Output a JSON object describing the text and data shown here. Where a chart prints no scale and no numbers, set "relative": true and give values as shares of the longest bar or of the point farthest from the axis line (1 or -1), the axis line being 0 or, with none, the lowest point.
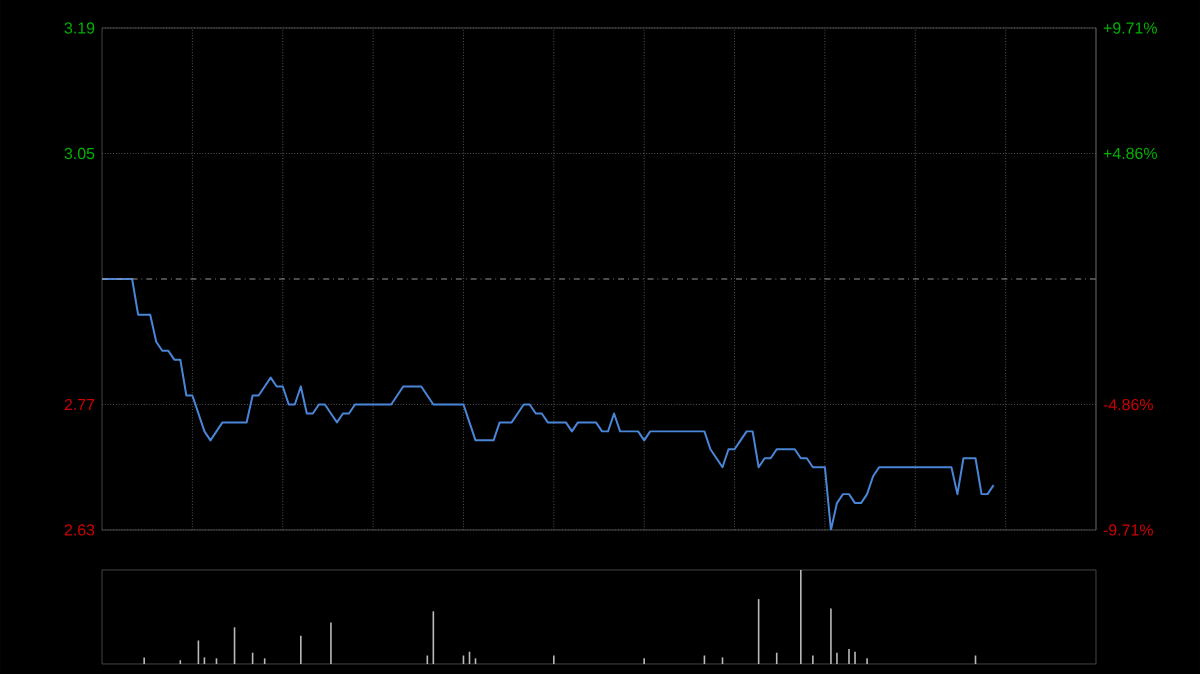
{
  "chart_data": [
    {
      "type": "line",
      "categories": [
        null,
        null,
        null,
        null,
        null,
        null,
        null,
        null,
        null,
        null,
        null,
        null,
        null,
        null,
        null,
        null,
        null,
        null,
        null,
        null,
        null,
        null,
        null,
        null,
        null,
        null,
        null,
        null,
        null,
        null,
        null,
        null,
        null,
        null,
        null,
        null,
        null,
        null,
        null,
        null,
        null,
        null,
        null,
        null,
        null,
        null,
        null,
        null,
        null,
        null,
        null,
        null,
        null,
        null,
        null,
        null,
        null,
        null,
        null,
        null,
        null,
        null,
        null,
        null,
        null,
        null,
        null,
        null,
        null,
        null,
        null,
        null,
        null,
        null,
        null,
        null,
        null,
        null,
        null,
        null,
        null,
        null,
        null,
        null,
        null,
        null,
        null,
        null,
        null,
        null,
        null,
        null,
        null,
        null,
        null,
        null,
        null,
        null,
        null,
        null,
        null,
        null,
        null,
        null,
        null,
        null,
        null,
        null,
        null,
        null,
        null,
        null,
        null,
        null,
        null,
        null,
        null,
        null,
        null,
        null,
        null,
        null,
        null,
        null,
        null,
        null,
        null,
        null,
        null,
        null,
        null,
        null,
        null,
        null,
        null,
        null,
        null,
        null,
        null,
        null,
        null,
        null,
        null,
        null,
        null,
        null,
        null,
        null,
        null,
        null,
        null,
        null,
        null,
        null,
        null,
        null,
        null,
        null,
        null,
        null,
        null,
        null,
        null,
        null,
        null,
        null
      ],
      "series": [
        {
          "color": "#4a86d8",
          "values": [
            2.91,
            2.91,
            2.91,
            2.91,
            2.91,
            2.91,
            2.87,
            2.87,
            2.87,
            2.84,
            2.83,
            2.83,
            2.82,
            2.82,
            2.78,
            2.78,
            2.76,
            2.74,
            2.73,
            2.74,
            2.75,
            2.75,
            2.75,
            2.75,
            2.75,
            2.78,
            2.78,
            2.79,
            2.8,
            2.79,
            2.79,
            2.77,
            2.77,
            2.79,
            2.76,
            2.76,
            2.77,
            2.77,
            2.76,
            2.75,
            2.76,
            2.76,
            2.77,
            2.77,
            2.77,
            2.77,
            2.77,
            2.77,
            2.77,
            2.78,
            2.79,
            2.79,
            2.79,
            2.79,
            2.78,
            2.77,
            2.77,
            2.77,
            2.77,
            2.77,
            2.77,
            2.75,
            2.73,
            2.73,
            2.73,
            2.73,
            2.75,
            2.75,
            2.75,
            2.76,
            2.77,
            2.77,
            2.76,
            2.76,
            2.75,
            2.75,
            2.75,
            2.75,
            2.74,
            2.75,
            2.75,
            2.75,
            2.75,
            2.74,
            2.74,
            2.76,
            2.74,
            2.74,
            2.74,
            2.74,
            2.73,
            2.74,
            2.74,
            2.74,
            2.74,
            2.74,
            2.74,
            2.74,
            2.74,
            2.74,
            2.74,
            2.72,
            2.71,
            2.7,
            2.72,
            2.72,
            2.73,
            2.74,
            2.74,
            2.7,
            2.71,
            2.71,
            2.72,
            2.72,
            2.72,
            2.72,
            2.71,
            2.71,
            2.7,
            2.7,
            2.7,
            2.63,
            2.66,
            2.67,
            2.67,
            2.66,
            2.66,
            2.67,
            2.69,
            2.7,
            2.7,
            2.7,
            2.7,
            2.7,
            2.7,
            2.7,
            2.7,
            2.7,
            2.7,
            2.7,
            2.7,
            2.7,
            2.67,
            2.71,
            2.71,
            2.71,
            2.67,
            2.67,
            2.68,
            null,
            null,
            null,
            null,
            null,
            null,
            null,
            null,
            null,
            null,
            null,
            null,
            null,
            null,
            null,
            null,
            null
          ]
        }
      ],
      "ylim": [
        2.63,
        3.19
      ],
      "yticks": [
        {
          "value": 2.63,
          "label": "2.63"
        },
        {
          "value": 2.77,
          "label": "2.77"
        },
        {
          "value": 3.05,
          "label": "3.05"
        },
        {
          "value": 3.19,
          "label": "3.19"
        }
      ],
      "y2lim": [
        -9.71,
        9.71
      ],
      "y2ticks": [
        {
          "value": -9.71,
          "label": "-9.71%"
        },
        {
          "value": -4.86,
          "label": "-4.86%"
        },
        {
          "value": 4.86,
          "label": "+4.86%"
        },
        {
          "value": 9.71,
          "label": "+9.71%"
        }
      ],
      "ref_lines": [
        {
          "axis": "y",
          "value": 2.91,
          "line_style": "dashed"
        }
      ],
      "grid": true,
      "tick_labels": "y"
    },
    {
      "type": "bar",
      "relative": true,
      "color": "#bbbbbb",
      "tick_labels": false,
      "categories": [
        null,
        null,
        null,
        null,
        null,
        null,
        null,
        null,
        null,
        null,
        null,
        null,
        null,
        null,
        null,
        null,
        null,
        null,
        null,
        null,
        null,
        null,
        null,
        null,
        null,
        null,
        null,
        null,
        null,
        null,
        null,
        null,
        null,
        null,
        null,
        null,
        null,
        null,
        null,
        null,
        null,
        null,
        null,
        null,
        null,
        null,
        null,
        null,
        null,
        null,
        null,
        null,
        null,
        null,
        null,
        null,
        null,
        null,
        null,
        null,
        null,
        null,
        null,
        null,
        null,
        null,
        null,
        null,
        null,
        null,
        null,
        null,
        null,
        null,
        null,
        null,
        null,
        null,
        null,
        null,
        null,
        null,
        null,
        null,
        null,
        null,
        null,
        null,
        null,
        null,
        null,
        null,
        null,
        null,
        null,
        null,
        null,
        null,
        null,
        null,
        null,
        null,
        null,
        null,
        null,
        null,
        null,
        null,
        null,
        null,
        null,
        null,
        null,
        null,
        null,
        null,
        null,
        null,
        null,
        null,
        null,
        null,
        null,
        null,
        null,
        null,
        null,
        null,
        null,
        null,
        null,
        null,
        null,
        null,
        null,
        null,
        null,
        null,
        null,
        null,
        null,
        null,
        null,
        null,
        null,
        null,
        null,
        null,
        null,
        null,
        null,
        null,
        null,
        null,
        null,
        null,
        null,
        null,
        null,
        null,
        null,
        null,
        null,
        null,
        null,
        null
      ],
      "values": [
        0,
        0,
        0,
        0,
        0,
        0,
        0,
        0.07,
        0,
        0,
        0,
        0,
        0,
        0.04,
        0,
        0,
        0.25,
        0.07,
        0,
        0.06,
        0,
        0,
        0.39,
        0,
        0,
        0.12,
        0,
        0.06,
        0,
        0,
        0,
        0,
        0,
        0.3,
        0,
        0,
        0,
        0,
        0.44,
        0,
        0,
        0,
        0,
        0,
        0,
        0,
        0,
        0,
        0,
        0,
        0,
        0,
        0,
        0,
        0.09,
        0.56,
        0,
        0,
        0,
        0,
        0.09,
        0.13,
        0.06,
        0,
        0,
        0,
        0,
        0,
        0,
        0,
        0,
        0,
        0,
        0,
        0,
        0.09,
        0,
        0,
        0,
        0,
        0,
        0,
        0,
        0,
        0,
        0,
        0,
        0,
        0,
        0,
        0.06,
        0,
        0,
        0,
        0,
        0,
        0,
        0,
        0,
        0,
        0.09,
        0,
        0,
        0.07,
        0,
        0,
        0,
        0,
        0,
        0.69,
        0,
        0,
        0.12,
        0,
        0,
        0,
        1,
        0,
        0.09,
        0,
        0,
        0.59,
        0.12,
        0,
        0.16,
        0.13,
        0,
        0.06,
        0,
        0,
        0,
        0,
        0,
        0,
        0,
        0,
        0,
        0,
        0,
        0,
        0,
        0,
        0,
        0,
        0,
        0.09,
        0,
        0,
        null,
        null,
        null,
        null,
        null,
        null,
        null,
        null,
        null,
        null,
        null,
        null,
        null,
        null,
        null,
        null,
        null,
        null
      ]
    }
  ]
}
